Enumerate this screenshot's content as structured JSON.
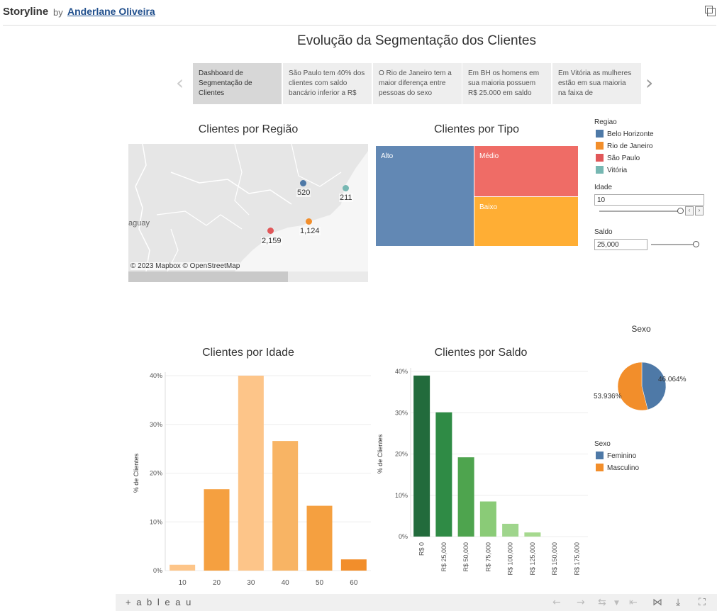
{
  "header": {
    "brand": "Storyline",
    "by": "by",
    "author": "Anderlane Oliveira"
  },
  "dashboard_title": "Evolução da Segmentação dos Clientes",
  "story_points": [
    {
      "text": "Dashboard de Segmentação de Clientes"
    },
    {
      "text": "São Paulo tem 40% dos clientes com saldo bancário inferior a R$"
    },
    {
      "text": "O Rio de Janeiro tem a maior diferença entre pessoas do sexo"
    },
    {
      "text": "Em BH os homens em sua maioria possuem R$ 25.000 em saldo"
    },
    {
      "text": "Em Vitória as mulheres estão em sua maioria na faixa de"
    }
  ],
  "map": {
    "title": "Clientes por Região",
    "attribution": "© 2023 Mapbox  © OpenStreetMap",
    "country_label": "aguay",
    "points": [
      {
        "city": "Belo Horizonte",
        "label": "520",
        "color": "#4e79a7"
      },
      {
        "city": "Vitória",
        "label": "211",
        "color": "#76b7b2"
      },
      {
        "city": "Rio de Janeiro",
        "label": "1,124",
        "color": "#f28e2b"
      },
      {
        "city": "São Paulo",
        "label": "2,159",
        "color": "#e15759"
      }
    ]
  },
  "treemap": {
    "title": "Clientes por Tipo",
    "cells": [
      {
        "label": "Alto",
        "color": "#6288b4"
      },
      {
        "label": "Médio",
        "color": "#ef6c66"
      },
      {
        "label": "Baixo",
        "color": "#ffae34"
      }
    ]
  },
  "region_legend": {
    "title": "Regiao",
    "items": [
      {
        "label": "Belo Horizonte",
        "color": "#4e79a7"
      },
      {
        "label": "Rio de Janeiro",
        "color": "#f28e2b"
      },
      {
        "label": "São Paulo",
        "color": "#e15759"
      },
      {
        "label": "Vitória",
        "color": "#76b7b2"
      }
    ]
  },
  "filters": {
    "idade": {
      "label": "Idade",
      "value": "10"
    },
    "saldo": {
      "label": "Saldo",
      "value": "25,000"
    }
  },
  "sexo_pie": {
    "title": "Sexo",
    "legend_title": "Sexo",
    "slices": [
      {
        "name": "Feminino",
        "value": 46.064,
        "label": "46.064%",
        "color": "#4e79a7"
      },
      {
        "name": "Masculino",
        "value": 53.936,
        "label": "53.936%",
        "color": "#f28e2b"
      }
    ]
  },
  "chart_data": [
    {
      "type": "bar",
      "title": "Clientes por Idade",
      "ylabel": "% de Clientes",
      "xlabel": "",
      "categories": [
        "10",
        "20",
        "30",
        "40",
        "50",
        "60"
      ],
      "values": [
        1.2,
        16.7,
        40.0,
        26.6,
        13.3,
        2.3
      ],
      "colors": [
        "#fdc589",
        "#f5a040",
        "#fdc589",
        "#f8b464",
        "#f5a040",
        "#f28e2b"
      ],
      "yticks": [
        "0%",
        "10%",
        "20%",
        "30%",
        "40%"
      ],
      "ylim": [
        0,
        40
      ]
    },
    {
      "type": "bar",
      "title": "Clientes por Saldo",
      "ylabel": "% de Clientes",
      "xlabel": "",
      "categories": [
        "R$ 0",
        "R$ 25,000",
        "R$ 50,000",
        "R$ 75,000",
        "R$ 100,000",
        "R$ 125,000",
        "R$ 150,000",
        "R$ 175,000"
      ],
      "values": [
        39.0,
        30.1,
        19.2,
        8.5,
        3.1,
        1.0,
        0,
        0
      ],
      "colors": [
        "#226b3c",
        "#2f8b45",
        "#4ea44e",
        "#8acb77",
        "#9fd58c",
        "#a6d98f",
        "#b5e0a0",
        "#b5e0a0"
      ],
      "yticks": [
        "0%",
        "10%",
        "20%",
        "30%",
        "40%"
      ],
      "ylim": [
        0,
        40
      ]
    }
  ],
  "footer": {
    "logo": "+ a b l e a u"
  }
}
